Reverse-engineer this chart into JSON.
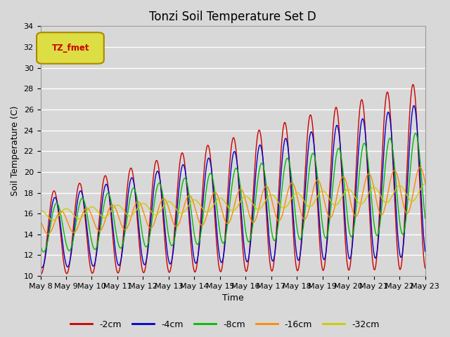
{
  "title": "Tonzi Soil Temperature Set D",
  "xlabel": "Time",
  "ylabel": "Soil Temperature (C)",
  "ylim": [
    10,
    34
  ],
  "yticks": [
    10,
    12,
    14,
    16,
    18,
    20,
    22,
    24,
    26,
    28,
    30,
    32,
    34
  ],
  "background_color": "#d8d8d8",
  "plot_bg_color": "#d8d8d8",
  "series_colors": {
    "-2cm": "#cc0000",
    "-4cm": "#0000cc",
    "-8cm": "#00bb00",
    "-16cm": "#ff8800",
    "-32cm": "#cccc00"
  },
  "legend_label": "TZ_fmet",
  "n_days": 15,
  "start_day": 8,
  "points_per_day": 96,
  "title_fontsize": 12,
  "axis_label_fontsize": 9,
  "tick_fontsize": 8
}
